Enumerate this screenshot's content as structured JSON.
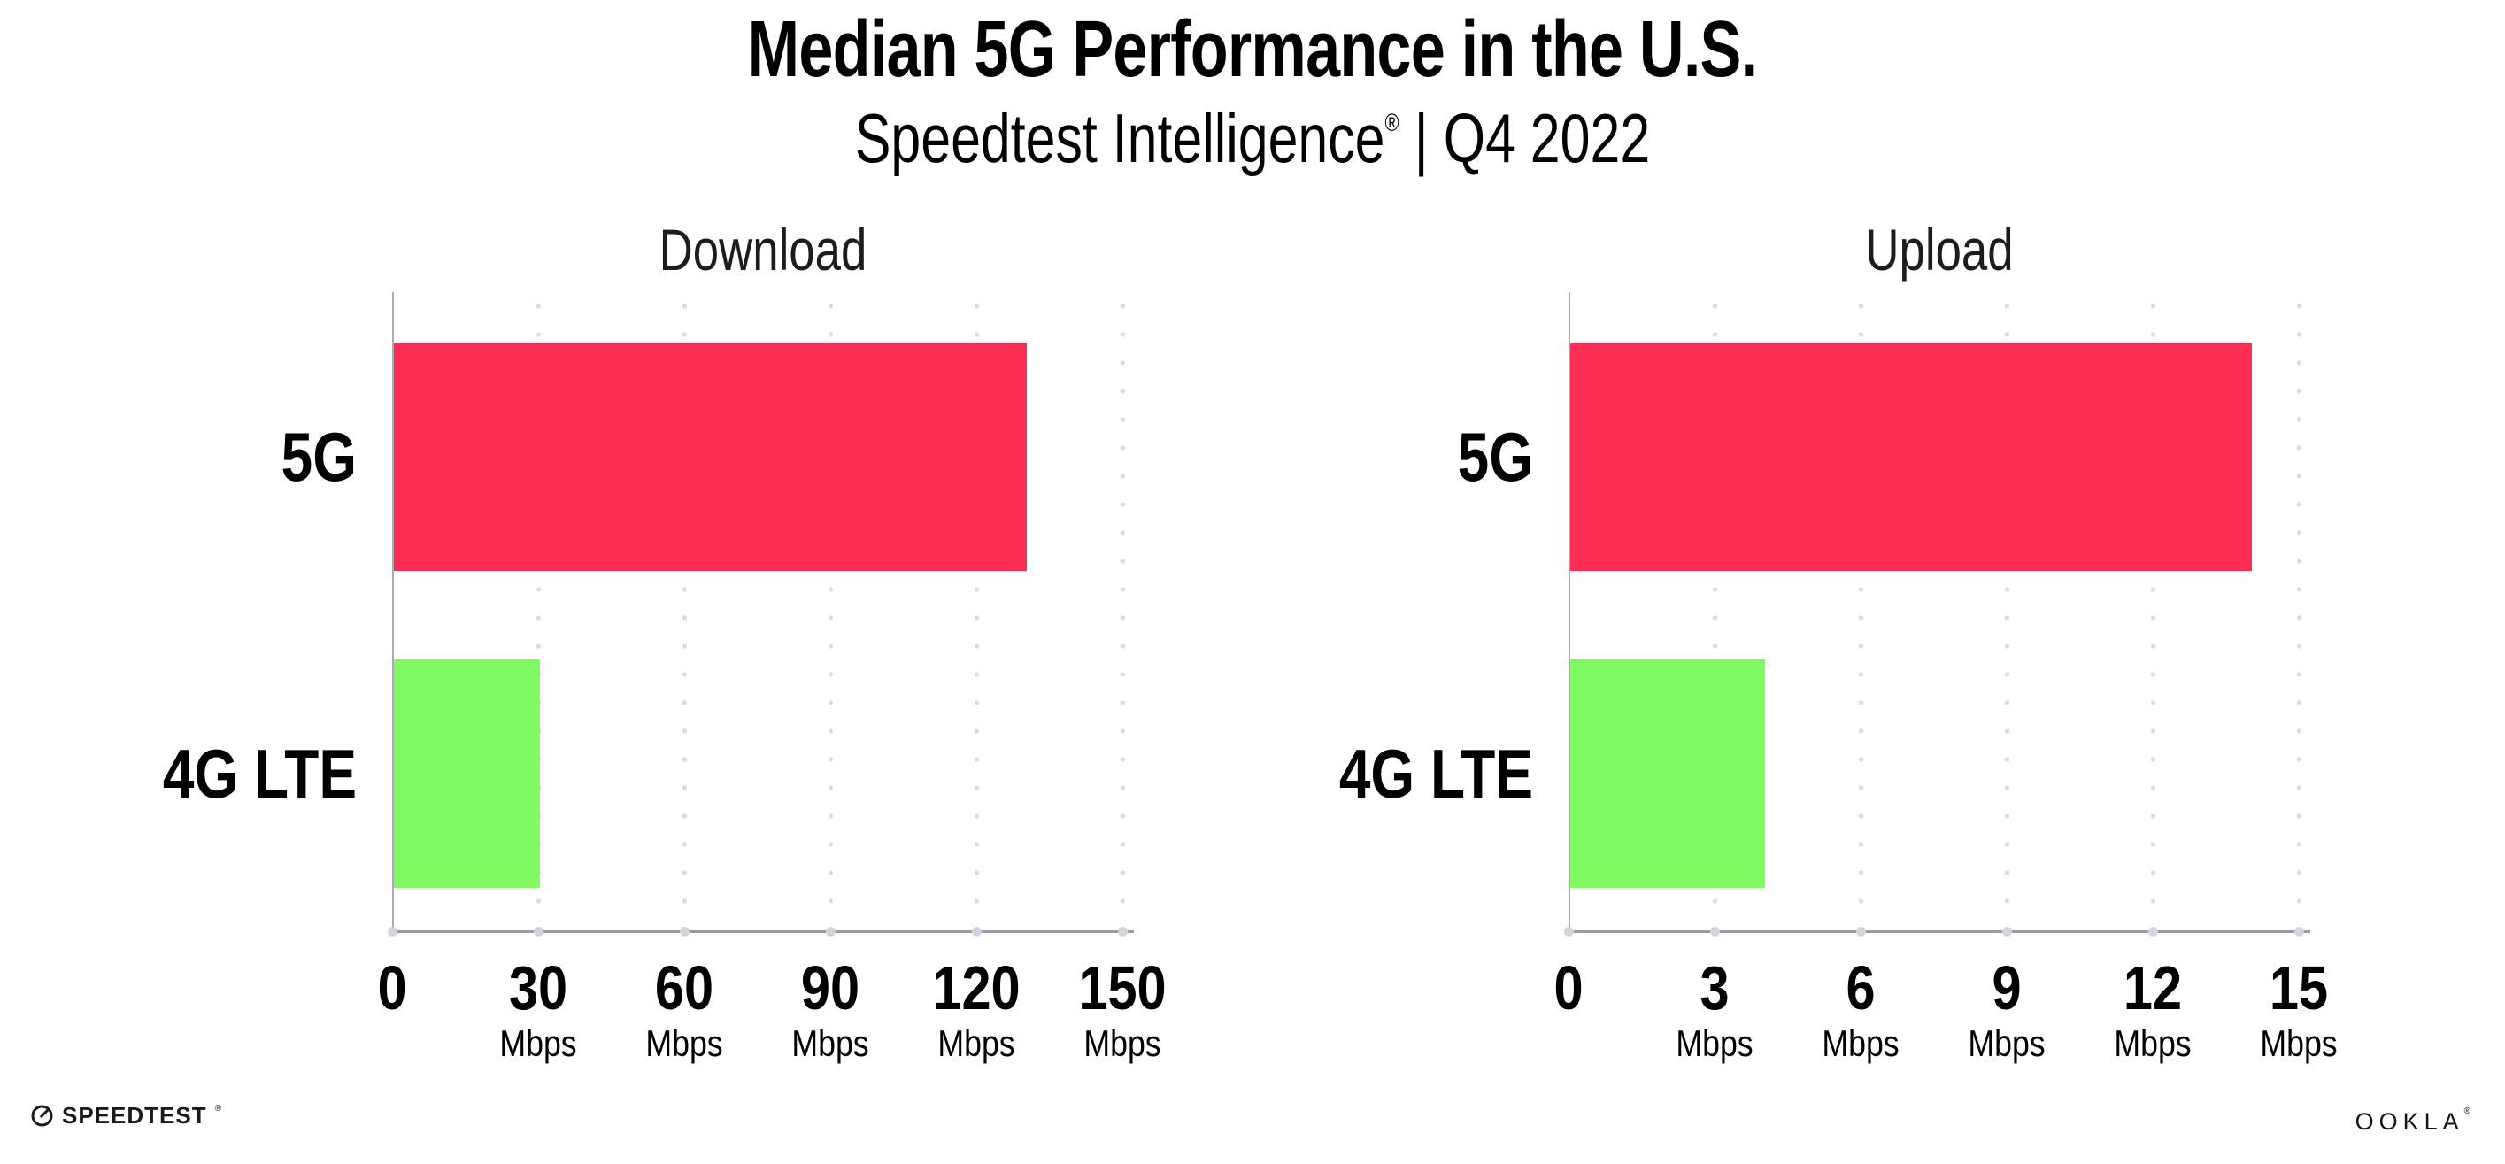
{
  "header": {
    "title": "Median 5G Performance in the U.S.",
    "product": "Speedtest Intelligence",
    "reg_mark": "®",
    "separator": "|",
    "period": "Q4 2022"
  },
  "chart_data": [
    {
      "type": "bar",
      "orientation": "horizontal",
      "title": "Download",
      "categories": [
        "5G",
        "4G LTE"
      ],
      "values": [
        130,
        30
      ],
      "unit": "Mbps",
      "xlabel": "",
      "ylabel": "",
      "xlim": [
        0,
        150
      ],
      "xticks": [
        0,
        30,
        60,
        90,
        120,
        150
      ],
      "bar_colors": [
        "#FC2E56",
        "#7FFA63"
      ],
      "grid": "dotted-vertical-at-ticks",
      "legend": "none"
    },
    {
      "type": "bar",
      "orientation": "horizontal",
      "title": "Upload",
      "categories": [
        "5G",
        "4G LTE"
      ],
      "values": [
        14,
        4
      ],
      "unit": "Mbps",
      "xlabel": "",
      "ylabel": "",
      "xlim": [
        0,
        15
      ],
      "xticks": [
        0,
        3,
        6,
        9,
        12,
        15
      ],
      "bar_colors": [
        "#FC2E56",
        "#7FFA63"
      ],
      "grid": "dotted-vertical-at-ticks",
      "legend": "none"
    }
  ],
  "footer": {
    "speedtest_brand": "SPEEDTEST",
    "speedtest_reg": "®",
    "ookla_brand": "OOKLA",
    "ookla_reg": "®"
  },
  "colors": {
    "bar_5g": "#FC2E56",
    "bar_4g_lte": "#7FFA63",
    "axis_line": "#9B9B9B",
    "grid_dots": "#DBDBE7",
    "text": "#000000",
    "background": "#FFFFFF"
  }
}
